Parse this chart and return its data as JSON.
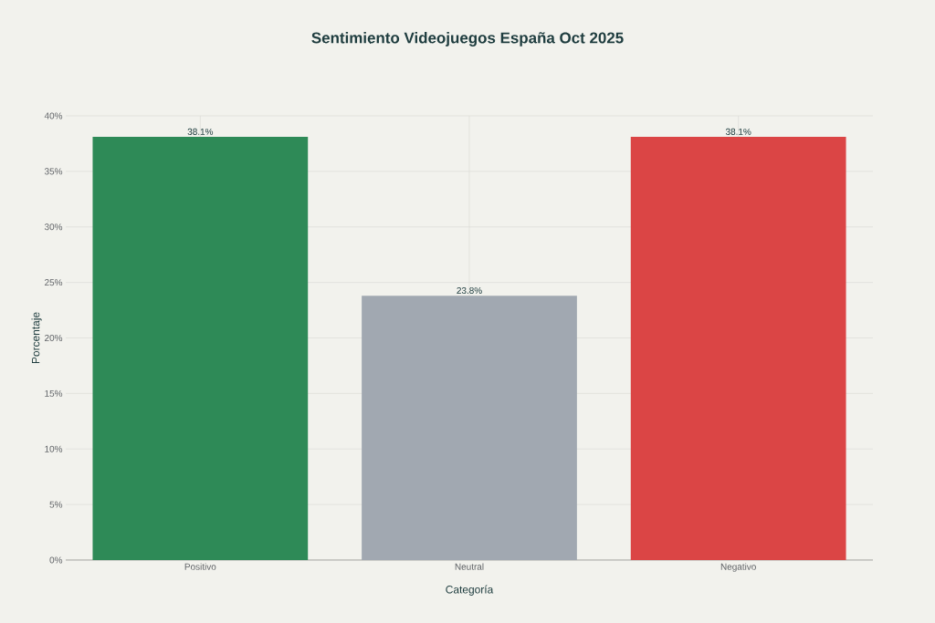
{
  "chart_data": {
    "type": "bar",
    "title": "Sentimiento Videojuegos España Oct 2025",
    "xlabel": "Categoría",
    "ylabel": "Porcentaje",
    "categories": [
      "Positivo",
      "Neutral",
      "Negativo"
    ],
    "values": [
      38.1,
      23.8,
      38.1
    ],
    "colors": [
      "#2e8a57",
      "#a1a8b1",
      "#db4545"
    ],
    "value_labels": [
      "38.1%",
      "23.8%",
      "38.1%"
    ],
    "ylim": [
      0,
      40
    ],
    "yticks": [
      {
        "value": 0,
        "label": "0%"
      },
      {
        "value": 5,
        "label": "5%"
      },
      {
        "value": 10,
        "label": "10%"
      },
      {
        "value": 15,
        "label": "15%"
      },
      {
        "value": 20,
        "label": "20%"
      },
      {
        "value": 25,
        "label": "25%"
      },
      {
        "value": 30,
        "label": "30%"
      },
      {
        "value": 35,
        "label": "35%"
      },
      {
        "value": 40,
        "label": "40%"
      }
    ],
    "grid": true
  }
}
